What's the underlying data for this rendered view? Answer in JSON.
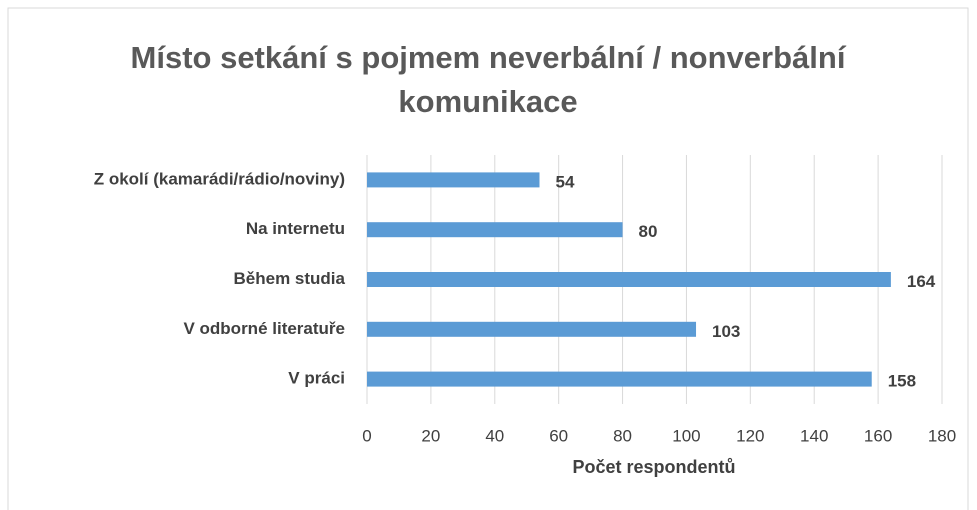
{
  "chart_data": {
    "type": "bar",
    "orientation": "horizontal",
    "title": "Místo setkání s pojmem neverbální / nonverbální komunikace",
    "categories": [
      "Z okolí (kamarádi/rádio/noviny)",
      "Na internetu",
      "Během studia",
      "V odborné literatuře",
      "V práci"
    ],
    "values": [
      54,
      80,
      164,
      103,
      158
    ],
    "color": "#5b9bd5",
    "xlabel": "Počet respondentů",
    "xlim": [
      0,
      180
    ],
    "xticks": [
      0,
      20,
      40,
      60,
      80,
      100,
      120,
      140,
      160,
      180
    ],
    "grid": true
  }
}
